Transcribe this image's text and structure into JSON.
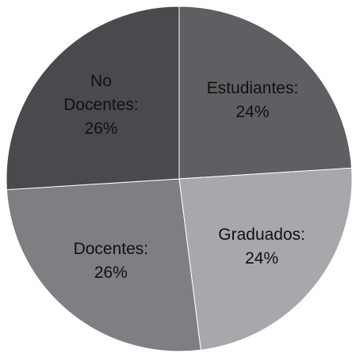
{
  "chart_data": {
    "type": "pie",
    "categories": [
      "Estudiantes:",
      "Graduados:",
      "Docentes:",
      "No Docentes:"
    ],
    "values": [
      24,
      24,
      26,
      26
    ],
    "value_labels": [
      "24%",
      "24%",
      "26%",
      "26%"
    ],
    "colors": [
      "#5e5f63",
      "#a7a8ac",
      "#7e7f83",
      "#494a4e"
    ]
  }
}
